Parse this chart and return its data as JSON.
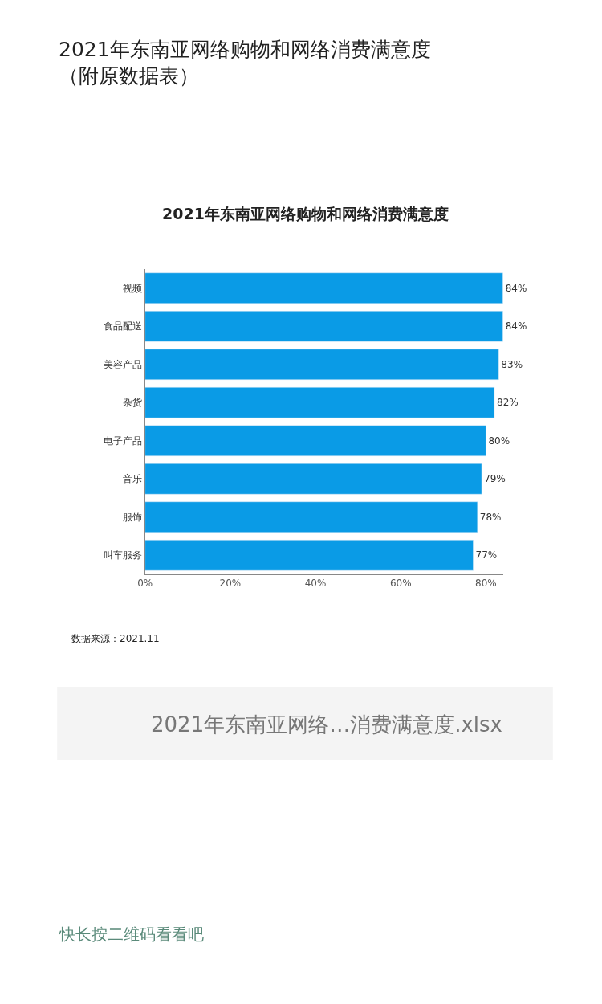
{
  "chart_data": {
    "type": "bar",
    "orientation": "horizontal",
    "title": "2021年东南亚网络购物和网络消费满意度",
    "categories": [
      "视频",
      "食品配送",
      "美容产品",
      "杂货",
      "电子产品",
      "音乐",
      "服饰",
      "叫车服务"
    ],
    "values": [
      84,
      84,
      83,
      82,
      80,
      79,
      78,
      77
    ],
    "value_labels": [
      "84%",
      "84%",
      "83%",
      "82%",
      "80%",
      "79%",
      "78%",
      "77%"
    ],
    "color": "#0a9be6",
    "xlim": [
      0,
      84
    ],
    "xticks": [
      {
        "value": 0,
        "label": "0%"
      },
      {
        "value": 20,
        "label": "20%"
      },
      {
        "value": 40,
        "label": "40%"
      },
      {
        "value": 60,
        "label": "60%"
      },
      {
        "value": 80,
        "label": "80%"
      }
    ],
    "legend": false,
    "annotations": [
      "2021年东南亚网络购物和网络消费满意度（附原数据表）",
      "数据来源：2021.11",
      "2021年东南亚网络…消费满意度.xlsx",
      "快长按二维码看看吧"
    ]
  }
}
